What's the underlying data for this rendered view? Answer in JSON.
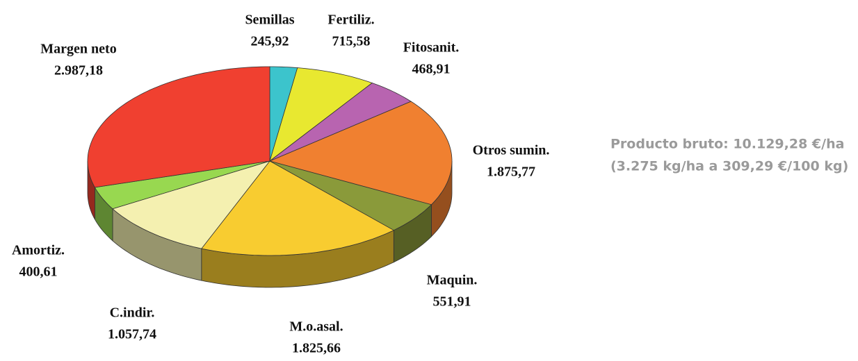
{
  "chart_data": {
    "type": "pie",
    "categories": [
      "Semillas",
      "Fertiliz.",
      "Fitosanit.",
      "Otros sumin.",
      "Maquin.",
      "M.o.asal.",
      "C.indir.",
      "Amortiz.",
      "Margen neto"
    ],
    "values": [
      245.92,
      715.58,
      468.91,
      1875.77,
      551.91,
      1825.66,
      1057.74,
      400.61,
      2987.18
    ],
    "value_labels": [
      "245,92",
      "715,58",
      "468,91",
      "1.875,77",
      "551,91",
      "1.825,66",
      "1.057,74",
      "400,61",
      "2.987,18"
    ],
    "colors": [
      "#3cc4cc",
      "#e8e830",
      "#b864b0",
      "#f08030",
      "#8a9a3a",
      "#f8cc30",
      "#f4f0b0",
      "#98d850",
      "#f04030"
    ],
    "annotations": [
      "Producto bruto: 10.129,28 €/ha",
      "(3.275 kg/ha a 309,29 €/100 kg)"
    ]
  }
}
